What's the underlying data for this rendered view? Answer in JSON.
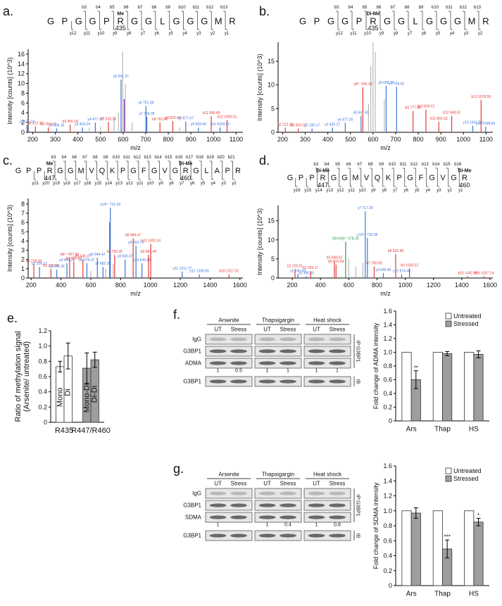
{
  "chart_data": [
    {
      "type": "spectrum",
      "panel": "a.",
      "sequence": {
        "residues": [
          "G",
          "P",
          "G",
          "G",
          "P",
          "R",
          "G",
          "G",
          "L",
          "G",
          "G",
          "G",
          "M",
          "R"
        ],
        "b_ions": [
          "b3",
          "b4",
          "b5",
          "b6",
          "b7",
          "b8",
          "b9",
          "b10",
          "b11",
          "b12",
          "b13"
        ],
        "y_ions": [
          "y12",
          "y11",
          "y10",
          "y9",
          "y8",
          "y7",
          "y6",
          "y5",
          "y4",
          "y3",
          "y2",
          "y1"
        ],
        "mods": [
          null,
          null,
          null,
          null,
          null,
          "Me",
          null,
          null,
          null,
          null,
          null,
          null,
          null,
          null
        ],
        "sites": [
          null,
          null,
          null,
          null,
          null,
          "435",
          null,
          null,
          null,
          null,
          null,
          null,
          null,
          null
        ]
      },
      "xlabel": "m/z",
      "ylabel": "Intensity [counts] (10^3)",
      "xlim": [
        180,
        1130
      ],
      "xticks": [
        200,
        300,
        400,
        500,
        600,
        700,
        800,
        900,
        1000,
        1100
      ],
      "ylim": [
        0,
        17
      ],
      "yticks": [
        0,
        2,
        4,
        6,
        8,
        10,
        12,
        14,
        16
      ],
      "peaks": {
        "x": [
          175,
          212,
          269,
          306,
          366,
          420,
          450,
          477,
          500,
          535,
          560,
          580,
          591,
          598,
          605,
          610,
          640,
          701,
          705,
          763,
          820,
          850,
          877,
          933,
          990,
          1029,
          1060
        ],
        "values": [
          1.5,
          1.2,
          1.0,
          0.8,
          1.6,
          1.0,
          1.0,
          2.0,
          1.2,
          2.1,
          3.0,
          4.0,
          10.8,
          16.5,
          6.8,
          10.0,
          2.0,
          5.4,
          3.2,
          2.0,
          2.3,
          1.0,
          2.2,
          1.0,
          3.3,
          1.0,
          2.5
        ],
        "colors": [
          "#3b73d9",
          "#e53935",
          "#e53935",
          "#3b73d9",
          "#e53935",
          "#3b73d9",
          "#b8b8b8",
          "#3b73d9",
          "#b8b8b8",
          "#e53935",
          "#b8b8b8",
          "#b8b8b8",
          "#3b73d9",
          "#b8b8b8",
          "#7a1fa2",
          "#b8b8b8",
          "#b8b8b8",
          "#3b73d9",
          "#3b73d9",
          "#e53935",
          "#e53935",
          "#b8b8b8",
          "#3b73d9",
          "#3b73d9",
          "#e53935",
          "#3b73d9",
          "#e53935"
        ],
        "labels": [
          "y1 175.12",
          "b2 212.10",
          "b3 269.12",
          "y2 306.16",
          "b4 366.18",
          "y3 419.24",
          null,
          "y4 477.27",
          null,
          "b5 535.28",
          null,
          null,
          "y5 591.37",
          null,
          null,
          null,
          null,
          "y6 701.38",
          "y7 704.39",
          "b8 763.40",
          "b9 820.42",
          null,
          "y8 877.47",
          "y9 933.49",
          "b11 990.49",
          "y10 1029.51",
          "b12 1060.51"
        ]
      }
    },
    {
      "type": "spectrum",
      "panel": "b.",
      "sequence": {
        "residues": [
          "G",
          "P",
          "G",
          "G",
          "P",
          "R",
          "G",
          "G",
          "L",
          "G",
          "G",
          "G",
          "M",
          "R"
        ],
        "b_ions": [
          "b3",
          "b4",
          "b5",
          "b6",
          "b7",
          "b8",
          "b9",
          "b10",
          "b11",
          "b12",
          "b13"
        ],
        "y_ions": [
          "y12",
          "y11",
          "y10",
          "y9",
          "y8",
          "y7",
          "y6",
          "y5",
          "y4",
          "y3",
          "y2"
        ],
        "mods": [
          null,
          null,
          null,
          null,
          null,
          "Di-Me",
          null,
          null,
          null,
          null,
          null,
          null,
          null,
          null
        ],
        "sites": [
          null,
          null,
          null,
          null,
          null,
          "435",
          null,
          null,
          null,
          null,
          null,
          null,
          null,
          null
        ]
      },
      "xlabel": "m/z",
      "ylabel": "Intensity [counts] (10^3)",
      "xlim": [
        180,
        1130
      ],
      "xticks": [
        200,
        300,
        400,
        500,
        600,
        700,
        800,
        900,
        1000,
        1100
      ],
      "ylim": [
        0,
        19
      ],
      "yticks": [
        0,
        5,
        10,
        15
      ],
      "peaks": {
        "x": [
          212,
          269,
          330,
          420,
          477,
          547,
          555,
          580,
          590,
          600,
          610,
          650,
          658,
          704,
          777,
          834,
          891,
          948,
          1041,
          1078,
          1098
        ],
        "values": [
          1.0,
          0.8,
          0.8,
          1.0,
          2.0,
          3.5,
          9.5,
          6,
          14,
          19,
          17,
          7,
          9.8,
          9.6,
          4.5,
          4.8,
          2.2,
          3.5,
          1.4,
          6.8,
          1.2
        ],
        "colors": [
          "#e53935",
          "#e53935",
          "#3b73d9",
          "#3b73d9",
          "#3b73d9",
          "#3b73d9",
          "#e53935",
          "#b8b8b8",
          "#b8b8b8",
          "#b8b8b8",
          "#b8b8b8",
          "#b8b8b8",
          "#3b73d9",
          "#3b73d9",
          "#e53935",
          "#e53935",
          "#e53935",
          "#e53935",
          "#3b73d9",
          "#e53935",
          "#3b73d9"
        ],
        "labels": [
          "b2 212.10",
          "b3 269.12",
          "y2 330.17",
          "y3 420.27",
          "y4 477.30",
          "y5 547.40",
          "y8²⁺ 555.24",
          null,
          null,
          null,
          null,
          null,
          "y6 658.33",
          "y7 704.42",
          "b9 777.46",
          "b10 834.51",
          "b11 891.53",
          "b12 948.52",
          "y10 1041.54",
          "b13 1078.59",
          "y11 1098.60"
        ]
      }
    },
    {
      "type": "spectrum",
      "panel": "c.",
      "sequence": {
        "residues": [
          "G",
          "P",
          "P",
          "R",
          "G",
          "G",
          "M",
          "V",
          "Q",
          "K",
          "P",
          "G",
          "F",
          "G",
          "V",
          "G",
          "R",
          "G",
          "L",
          "A",
          "P",
          "R"
        ],
        "b_ions": [
          "b3",
          "b4",
          "b6",
          "b7",
          "b8",
          "b9",
          "b10",
          "b11",
          "b12",
          "b13",
          "b14",
          "b15",
          "b16",
          "b17",
          "b18",
          "b19",
          "b20",
          "b21"
        ],
        "y_ions": [
          "y21",
          "y20",
          "y19",
          "y18",
          "y17",
          "y16",
          "y15",
          "y14",
          "y13",
          "y12",
          "y11",
          "y10",
          "y9",
          "y8",
          "y7",
          "y6",
          "y5",
          "y4",
          "y3",
          "y2"
        ],
        "mods": [
          null,
          null,
          null,
          "Me",
          null,
          null,
          null,
          null,
          null,
          null,
          null,
          null,
          null,
          null,
          null,
          null,
          "Di-Me",
          null,
          null,
          null,
          null,
          null
        ],
        "sites": [
          null,
          null,
          null,
          "447",
          null,
          null,
          null,
          null,
          null,
          null,
          null,
          null,
          null,
          null,
          null,
          null,
          "460",
          null,
          null,
          null,
          null,
          null
        ]
      },
      "xlabel": "m/z",
      "ylabel": "Intensity [counts] (10^3)",
      "xlim": [
        180,
        1620
      ],
      "xticks": [
        200,
        400,
        600,
        800,
        1000,
        1200,
        1400,
        1600
      ],
      "ylim": [
        0,
        8.6
      ],
      "yticks": [
        0,
        1,
        2,
        3,
        4,
        5,
        6,
        7,
        8
      ],
      "peaks": {
        "x": [
          218,
          256,
          333,
          372,
          440,
          458,
          486,
          547,
          574,
          600,
          644,
          682,
          700,
          726,
          731,
          750,
          760,
          830,
          884,
          903,
          943,
          987,
          1002,
          1213,
          1328,
          1527
        ],
        "values": [
          1.5,
          1.2,
          1.0,
          0.9,
          1.6,
          2.2,
          1.8,
          2.0,
          1.6,
          0.8,
          2.2,
          1.2,
          1.0,
          6.0,
          7.6,
          1.5,
          2.5,
          2.0,
          4.3,
          3.5,
          1.6,
          2.5,
          3.7,
          0.7,
          0.4,
          0.4
        ],
        "colors": [
          "#e53935",
          "#3b73d9",
          "#e53935",
          "#3b73d9",
          "#3b73d9",
          "#e53935",
          "#e53935",
          "#e53935",
          "#3b73d9",
          "#b8b8b8",
          "#3b73d9",
          "#3b73d9",
          "#b8b8b8",
          "#2e9e3e",
          "#3b73d9",
          "#b8b8b8",
          "#e53935",
          "#3b73d9",
          "#e53935",
          "#3b73d9",
          "#3b73d9",
          "#e53935",
          "#e53935",
          "#3b73d9",
          "#3b73d9",
          "#e53935"
        ],
        "labels": [
          "b2 218.09",
          "y2 256.17",
          "b3 333.98",
          "y3 372.26",
          "y4 440.29",
          "b8²⁺ 457.96",
          "b4 485.88",
          "b5 546.37",
          "y5 574.37",
          null,
          "y6 644.42",
          "y7 682.36",
          null,
          null,
          "y14²⁺ 731.39",
          null,
          "b6 760.35",
          "y8 830.37",
          "b8 884.47",
          "y9 903.72",
          "y10 943.35",
          "b9 987.49",
          "b10 1002.34",
          "y11 1211.77",
          "y12 1328.05",
          "b20 1527.52"
        ]
      }
    },
    {
      "type": "spectrum",
      "panel": "d.",
      "sequence": {
        "residues": [
          "G",
          "P",
          "P",
          "R",
          "G",
          "G",
          "M",
          "V",
          "Q",
          "K",
          "P",
          "G",
          "F",
          "G",
          "V",
          "G",
          "R"
        ],
        "b_ions": [
          "b3",
          "b4",
          "b5",
          "b6",
          "b7",
          "b8",
          "b9",
          "b10",
          "b11",
          "b12",
          "b13",
          "b14",
          "b15",
          "b16"
        ],
        "y_ions": [
          "y16",
          "y15",
          "y14",
          "y13",
          "y12",
          "y11",
          "y10",
          "y9",
          "y8",
          "y7",
          "y6",
          "y5",
          "y4",
          "y3",
          "y2",
          "y1"
        ],
        "mods": [
          null,
          null,
          null,
          "Di-Me",
          null,
          null,
          null,
          null,
          null,
          null,
          null,
          null,
          null,
          null,
          null,
          null,
          "Di-Me"
        ],
        "sites": [
          null,
          null,
          null,
          "447",
          null,
          null,
          null,
          null,
          null,
          null,
          null,
          null,
          null,
          null,
          null,
          null,
          "460"
        ]
      },
      "xlabel": "m/z",
      "ylabel": "Intensity [counts] (10^3)",
      "xlim": [
        100,
        1620
      ],
      "xticks": [
        200,
        400,
        600,
        800,
        1000,
        1200,
        1400,
        1600
      ],
      "ylim": [
        0,
        19
      ],
      "yticks": [
        0,
        5,
        10,
        15
      ],
      "peaks": {
        "x": [
          220,
          240,
          300,
          330,
          498,
          510,
          578,
          600,
          650,
          700,
          717,
          732,
          780,
          845,
          932,
          974,
          1030,
          1443,
          1557
        ],
        "values": [
          2.3,
          1.0,
          0.5,
          1.8,
          4.5,
          3.5,
          9.5,
          5,
          3,
          4,
          17.5,
          10.5,
          3.0,
          1.3,
          6.3,
          1.0,
          2.5,
          0.5,
          0.5
        ],
        "colors": [
          "#e53935",
          "#3b73d9",
          "#3b73d9",
          "#e53935",
          "#e53935",
          "#e53935",
          "#2e9e3e",
          "#b8b8b8",
          "#b8b8b8",
          "#b8b8b8",
          "#3b73d9",
          "#3b73d9",
          "#e53935",
          "#3b73d9",
          "#e53935",
          "#3b73d9",
          "#e53935",
          "#e53935",
          "#e53935"
        ],
        "labels": [
          "b2 220.01",
          "y2 240.09",
          "y1 300.55",
          "b3 329.17",
          "b4 498.63",
          "b5 510.54",
          "[M+3H]³⁺ 578.29",
          null,
          null,
          null,
          "y7 717.35",
          "y13²⁺ 732.39",
          "b7 780.59",
          "y9 845.40",
          "b8 932.48",
          "y10 974.46",
          "b9 1030.52",
          "b15 1442.58",
          "b16 1557.14"
        ]
      }
    },
    {
      "type": "bar",
      "panel": "e.",
      "ylabel": [
        "Ratio of methylation signal",
        "(Arsenite/ untreated)"
      ],
      "ylim": [
        0,
        1.2
      ],
      "yticks": [
        0,
        0.2,
        0.4,
        0.6,
        0.8,
        {
          "value": 1,
          "label": "1.0"
        },
        1.2
      ],
      "categories": [
        "R435",
        "R447/R460"
      ],
      "values": [
        [
          0.73,
          0.87
        ],
        [
          0.71,
          0.82
        ]
      ],
      "errors": [
        [
          0.07,
          0.17
        ],
        [
          0.2,
          0.1
        ]
      ],
      "bar_labels": [
        [
          "Mono",
          "Di"
        ],
        [
          "Mono-Di",
          "Di-Di"
        ]
      ],
      "colors": [
        "#ffffff",
        "#9e9e9e"
      ]
    },
    {
      "type": "bar",
      "ylabel": "Fold change of ADMA intensity",
      "ylim": [
        0,
        1.6
      ],
      "yticks": [
        0,
        0.2,
        0.4,
        0.6,
        0.8,
        {
          "value": 1,
          "label": "1.0"
        },
        1.2,
        1.4,
        1.6
      ],
      "categories": [
        "Ars",
        "Thap",
        "HS"
      ],
      "legend": "upper right",
      "series": [
        {
          "name": "Untreated",
          "color": "#ffffff",
          "values": [
            1,
            1,
            1
          ]
        },
        {
          "name": "Stressed",
          "color": "#9e9e9e",
          "values": [
            0.6,
            0.98,
            0.97
          ],
          "errors": [
            0.13,
            0.03,
            0.05
          ],
          "significance": [
            "**",
            null,
            null
          ]
        }
      ]
    },
    {
      "type": "bar",
      "ylabel": "Fold change of SDMA intensity",
      "ylim": [
        0,
        1.6
      ],
      "yticks": [
        0,
        0.2,
        0.4,
        0.6,
        0.8,
        {
          "value": 1,
          "label": "1.0"
        },
        1.2,
        1.4,
        1.6
      ],
      "categories": [
        "Ars",
        "Thap",
        "HS"
      ],
      "legend": "upper right",
      "series": [
        {
          "name": "Untreated",
          "color": "#ffffff",
          "values": [
            1,
            1,
            1
          ]
        },
        {
          "name": "Stressed",
          "color": "#9e9e9e",
          "values": [
            0.97,
            0.49,
            0.85
          ],
          "errors": [
            0.07,
            0.12,
            0.05
          ],
          "significance": [
            null,
            "***",
            "*"
          ]
        }
      ]
    }
  ],
  "blots": [
    {
      "panel": "f.",
      "treatments": [
        "Arsenite",
        "Thapsigargin",
        "Heat shock"
      ],
      "conditions": [
        [
          "UT",
          "Stress"
        ],
        [
          "UT",
          "Stress"
        ],
        [
          "UT",
          "Stress"
        ]
      ],
      "ip_rows": [
        "IgG",
        "G3BP1",
        "ADMA"
      ],
      "quant": [
        [
          1,
          0.5
        ],
        [
          1,
          1
        ],
        [
          1,
          1
        ]
      ],
      "ip_label": "IP:G3BP1",
      "ib_rows": [
        "G3BP1"
      ],
      "ib_label": "IB"
    },
    {
      "panel": "g.",
      "treatments": [
        "Arsenite",
        "Thapsigargin",
        "Heat shock"
      ],
      "conditions": [
        [
          "UT",
          "Stress"
        ],
        [
          "UT",
          "Stress"
        ],
        [
          "UT",
          "Stress"
        ]
      ],
      "ip_rows": [
        "IgG",
        "G3BP1",
        "SDMA"
      ],
      "quant": [
        [
          1,
          null
        ],
        [
          1,
          0.4
        ],
        [
          1,
          0.8
        ]
      ],
      "ip_label": "IP:G3BP1",
      "ib_rows": [
        "G3BP1"
      ],
      "ib_label": "IB"
    }
  ]
}
